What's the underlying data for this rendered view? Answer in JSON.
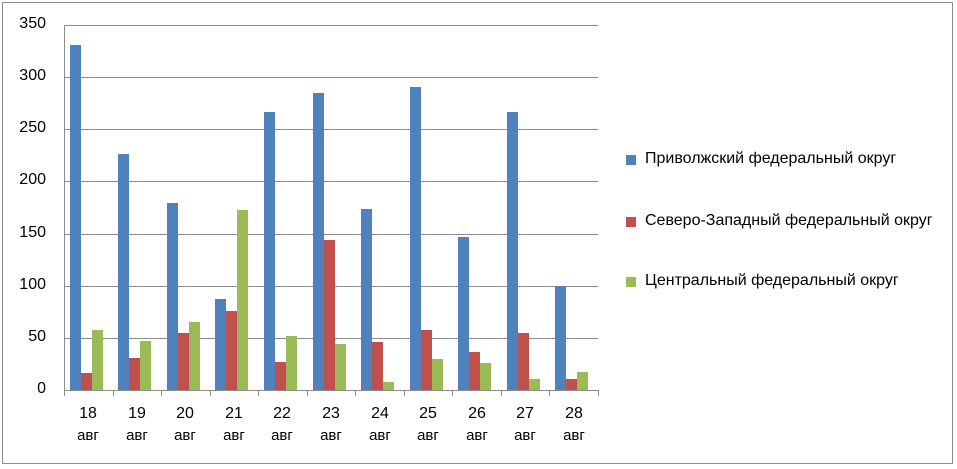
{
  "chart_data": {
    "type": "bar",
    "title": "",
    "xlabel": "",
    "ylabel": "",
    "ylim": [
      0,
      350
    ],
    "yticks": [
      0,
      50,
      100,
      150,
      200,
      250,
      300,
      350
    ],
    "grid": true,
    "legend_position": "right",
    "categories": [
      "18 авг",
      "19 авг",
      "20 авг",
      "21 авг",
      "22 авг",
      "23 авг",
      "24 авг",
      "25 авг",
      "26 авг",
      "27 авг",
      "28 авг"
    ],
    "category_parts": [
      {
        "num": "18",
        "mon": "авг"
      },
      {
        "num": "19",
        "mon": "авг"
      },
      {
        "num": "20",
        "mon": "авг"
      },
      {
        "num": "21",
        "mon": "авг"
      },
      {
        "num": "22",
        "mon": "авг"
      },
      {
        "num": "23",
        "mon": "авг"
      },
      {
        "num": "24",
        "mon": "авг"
      },
      {
        "num": "25",
        "mon": "авг"
      },
      {
        "num": "26",
        "mon": "авг"
      },
      {
        "num": "27",
        "mon": "авг"
      },
      {
        "num": "28",
        "mon": "авг"
      }
    ],
    "series": [
      {
        "name": "Приволжский федеральный округ",
        "color": "#4f81bd",
        "values": [
          331,
          226,
          179,
          87,
          267,
          285,
          174,
          291,
          147,
          267,
          100
        ]
      },
      {
        "name": "Северо-Западный федеральный округ",
        "color": "#c0504d",
        "values": [
          16,
          31,
          55,
          76,
          27,
          144,
          46,
          58,
          36,
          55,
          11
        ]
      },
      {
        "name": "Центральный федеральный округ",
        "color": "#9bbb59",
        "values": [
          58,
          47,
          65,
          173,
          52,
          44,
          8,
          30,
          26,
          11,
          17
        ]
      }
    ]
  },
  "legend": {
    "items": [
      {
        "label": "Приволжский федеральный округ",
        "color": "#4f81bd"
      },
      {
        "label": "Северо-Западный федеральный округ",
        "color": "#c0504d"
      },
      {
        "label": "Центральный федеральный округ",
        "color": "#9bbb59"
      }
    ]
  }
}
